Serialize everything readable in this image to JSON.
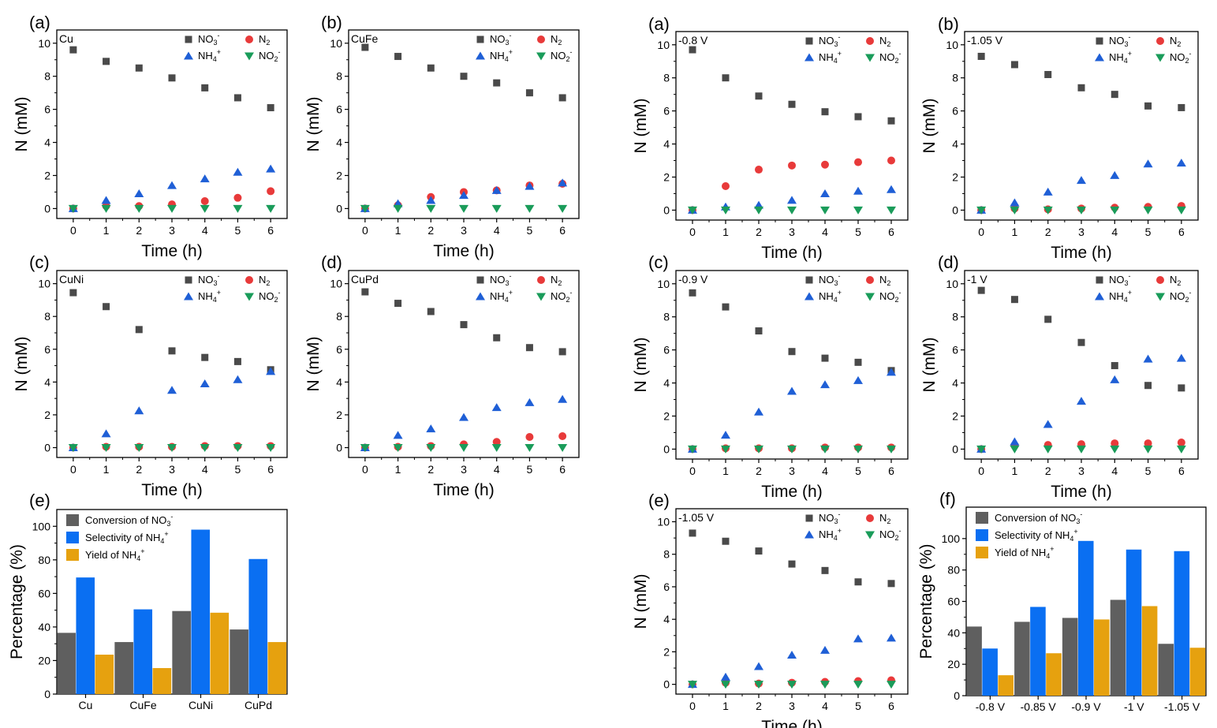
{
  "figure": {
    "series_names": [
      "NO3-",
      "N2",
      "NH4+",
      "NO2-"
    ],
    "colors": {
      "no3": "#4a4a4a",
      "n2": "#e83a3a",
      "nh4": "#1f5fd6",
      "no2": "#1a9c5a",
      "conv": "#5f5f5f",
      "sel": "#0a6ff2",
      "yield": "#e6a10f"
    },
    "time_xlabel": "Time (h)",
    "n_ylabel": "N (mM)",
    "pct_ylabel": "Percentage (%)"
  },
  "chart_data": [
    {
      "type": "scatter",
      "label": "(a)",
      "title": "Cu",
      "xlabel": "Time (h)",
      "ylabel": "N (mM)",
      "xlim": [
        -0.5,
        6.5
      ],
      "ylim": [
        -0.6,
        10.8
      ],
      "xticks": [
        0,
        1,
        2,
        3,
        4,
        5,
        6
      ],
      "yticks": [
        0,
        2,
        4,
        6,
        8,
        10
      ],
      "x": [
        0,
        1,
        2,
        3,
        4,
        5,
        6
      ],
      "series": [
        {
          "name": "NO3-",
          "values": [
            9.6,
            8.9,
            8.5,
            7.9,
            7.3,
            6.7,
            6.1
          ]
        },
        {
          "name": "N2",
          "values": [
            0,
            0.15,
            0.15,
            0.25,
            0.45,
            0.65,
            1.05
          ]
        },
        {
          "name": "NH4+",
          "values": [
            0,
            0.5,
            0.9,
            1.4,
            1.8,
            2.2,
            2.4
          ]
        },
        {
          "name": "NO2-",
          "values": [
            0,
            0,
            0,
            0,
            0,
            0,
            0
          ]
        }
      ]
    },
    {
      "type": "scatter",
      "label": "(b)",
      "title": "CuFe",
      "xlabel": "Time (h)",
      "ylabel": "N (mM)",
      "xlim": [
        -0.5,
        6.5
      ],
      "ylim": [
        -0.6,
        10.8
      ],
      "xticks": [
        0,
        1,
        2,
        3,
        4,
        5,
        6
      ],
      "yticks": [
        0,
        2,
        4,
        6,
        8,
        10
      ],
      "x": [
        0,
        1,
        2,
        3,
        4,
        5,
        6
      ],
      "series": [
        {
          "name": "NO3-",
          "values": [
            9.75,
            9.2,
            8.5,
            8.0,
            7.6,
            7.0,
            6.7
          ]
        },
        {
          "name": "N2",
          "values": [
            0,
            0.2,
            0.7,
            1.0,
            1.1,
            1.4,
            1.5
          ]
        },
        {
          "name": "NH4+",
          "values": [
            0,
            0.3,
            0.5,
            0.8,
            1.1,
            1.35,
            1.55
          ]
        },
        {
          "name": "NO2-",
          "values": [
            0,
            0,
            0,
            0,
            0,
            0,
            0
          ]
        }
      ]
    },
    {
      "type": "scatter",
      "label": "(c)",
      "title": "CuNi",
      "xlabel": "Time (h)",
      "ylabel": "N (mM)",
      "xlim": [
        -0.5,
        6.5
      ],
      "ylim": [
        -0.6,
        10.8
      ],
      "xticks": [
        0,
        1,
        2,
        3,
        4,
        5,
        6
      ],
      "yticks": [
        0,
        2,
        4,
        6,
        8,
        10
      ],
      "x": [
        0,
        1,
        2,
        3,
        4,
        5,
        6
      ],
      "series": [
        {
          "name": "NO3-",
          "values": [
            9.45,
            8.6,
            7.2,
            5.9,
            5.5,
            5.25,
            4.75
          ]
        },
        {
          "name": "N2",
          "values": [
            0,
            0.05,
            0.05,
            0.05,
            0.1,
            0.1,
            0.1
          ]
        },
        {
          "name": "NH4+",
          "values": [
            0,
            0.85,
            2.25,
            3.5,
            3.9,
            4.15,
            4.65
          ]
        },
        {
          "name": "NO2-",
          "values": [
            0,
            0,
            0,
            0,
            0,
            0,
            0
          ]
        }
      ]
    },
    {
      "type": "scatter",
      "label": "(d)",
      "title": "CuPd",
      "xlabel": "Time (h)",
      "ylabel": "N (mM)",
      "xlim": [
        -0.5,
        6.5
      ],
      "ylim": [
        -0.6,
        10.8
      ],
      "xticks": [
        0,
        1,
        2,
        3,
        4,
        5,
        6
      ],
      "yticks": [
        0,
        2,
        4,
        6,
        8,
        10
      ],
      "x": [
        0,
        1,
        2,
        3,
        4,
        5,
        6
      ],
      "series": [
        {
          "name": "NO3-",
          "values": [
            9.5,
            8.8,
            8.3,
            7.5,
            6.7,
            6.1,
            5.85
          ]
        },
        {
          "name": "N2",
          "values": [
            0,
            0.05,
            0.1,
            0.2,
            0.35,
            0.65,
            0.7
          ]
        },
        {
          "name": "NH4+",
          "values": [
            0,
            0.75,
            1.15,
            1.85,
            2.45,
            2.75,
            2.95
          ]
        },
        {
          "name": "NO2-",
          "values": [
            0,
            0,
            0,
            0,
            0,
            0,
            0
          ]
        }
      ]
    },
    {
      "type": "scatter",
      "label": "(a)",
      "title": "-0.8 V",
      "xlabel": "Time (h)",
      "ylabel": "N (mM)",
      "xlim": [
        -0.5,
        6.5
      ],
      "ylim": [
        -0.6,
        10.8
      ],
      "xticks": [
        0,
        1,
        2,
        3,
        4,
        5,
        6
      ],
      "yticks": [
        0,
        2,
        4,
        6,
        8,
        10
      ],
      "x": [
        0,
        1,
        2,
        3,
        4,
        5,
        6
      ],
      "series": [
        {
          "name": "NO3-",
          "values": [
            9.7,
            8.0,
            6.9,
            6.4,
            5.95,
            5.65,
            5.4
          ]
        },
        {
          "name": "N2",
          "values": [
            0,
            1.45,
            2.45,
            2.7,
            2.75,
            2.9,
            3.0
          ]
        },
        {
          "name": "NH4+",
          "values": [
            0,
            0.2,
            0.3,
            0.6,
            1.0,
            1.15,
            1.25
          ]
        },
        {
          "name": "NO2-",
          "values": [
            0,
            0,
            0,
            0,
            0,
            0,
            0
          ]
        }
      ]
    },
    {
      "type": "scatter",
      "label": "(b)",
      "title": "-1.05 V",
      "xlabel": "Time (h)",
      "ylabel": "N (mM)",
      "xlim": [
        -0.5,
        6.5
      ],
      "ylim": [
        -0.6,
        10.8
      ],
      "xticks": [
        0,
        1,
        2,
        3,
        4,
        5,
        6
      ],
      "yticks": [
        0,
        2,
        4,
        6,
        8,
        10
      ],
      "x": [
        0,
        1,
        2,
        3,
        4,
        5,
        6
      ],
      "series": [
        {
          "name": "NO3-",
          "values": [
            9.3,
            8.8,
            8.2,
            7.4,
            7.0,
            6.3,
            6.2
          ]
        },
        {
          "name": "N2",
          "values": [
            0,
            0.1,
            0.05,
            0.1,
            0.15,
            0.2,
            0.25
          ]
        },
        {
          "name": "NH4+",
          "values": [
            0,
            0.45,
            1.1,
            1.8,
            2.1,
            2.8,
            2.85
          ]
        },
        {
          "name": "NO2-",
          "values": [
            0,
            0,
            0,
            0,
            0,
            0,
            0
          ]
        }
      ]
    },
    {
      "type": "scatter",
      "label": "(c)",
      "title": "-0.9 V",
      "xlabel": "Time (h)",
      "ylabel": "N (mM)",
      "xlim": [
        -0.5,
        6.5
      ],
      "ylim": [
        -0.6,
        10.8
      ],
      "xticks": [
        0,
        1,
        2,
        3,
        4,
        5,
        6
      ],
      "yticks": [
        0,
        2,
        4,
        6,
        8,
        10
      ],
      "x": [
        0,
        1,
        2,
        3,
        4,
        5,
        6
      ],
      "series": [
        {
          "name": "NO3-",
          "values": [
            9.45,
            8.6,
            7.15,
            5.9,
            5.5,
            5.25,
            4.75
          ]
        },
        {
          "name": "N2",
          "values": [
            0,
            0.05,
            0.05,
            0.05,
            0.1,
            0.1,
            0.1
          ]
        },
        {
          "name": "NH4+",
          "values": [
            0,
            0.85,
            2.25,
            3.5,
            3.9,
            4.15,
            4.65
          ]
        },
        {
          "name": "NO2-",
          "values": [
            0,
            0,
            0,
            0,
            0,
            0,
            0
          ]
        }
      ]
    },
    {
      "type": "scatter",
      "label": "(d)",
      "title": "-1 V",
      "xlabel": "Time (h)",
      "ylabel": "N (mM)",
      "xlim": [
        -0.5,
        6.5
      ],
      "ylim": [
        -0.6,
        10.8
      ],
      "xticks": [
        0,
        1,
        2,
        3,
        4,
        5,
        6
      ],
      "yticks": [
        0,
        2,
        4,
        6,
        8,
        10
      ],
      "x": [
        0,
        1,
        2,
        3,
        4,
        5,
        6
      ],
      "series": [
        {
          "name": "NO3-",
          "values": [
            9.6,
            9.05,
            7.85,
            6.45,
            5.05,
            3.85,
            3.7
          ]
        },
        {
          "name": "N2",
          "values": [
            0,
            0.2,
            0.25,
            0.3,
            0.35,
            0.35,
            0.4
          ]
        },
        {
          "name": "NH4+",
          "values": [
            0,
            0.45,
            1.5,
            2.9,
            4.2,
            5.45,
            5.5
          ]
        },
        {
          "name": "NO2-",
          "values": [
            0,
            0,
            0,
            0,
            0,
            0,
            0
          ]
        }
      ]
    },
    {
      "type": "scatter",
      "label": "(e)",
      "title": "-1.05 V",
      "xlabel": "Time (h)",
      "ylabel": "N (mM)",
      "xlim": [
        -0.5,
        6.5
      ],
      "ylim": [
        -0.6,
        10.8
      ],
      "xticks": [
        0,
        1,
        2,
        3,
        4,
        5,
        6
      ],
      "yticks": [
        0,
        2,
        4,
        6,
        8,
        10
      ],
      "x": [
        0,
        1,
        2,
        3,
        4,
        5,
        6
      ],
      "series": [
        {
          "name": "NO3-",
          "values": [
            9.3,
            8.8,
            8.2,
            7.4,
            7.0,
            6.3,
            6.2
          ]
        },
        {
          "name": "N2",
          "values": [
            0,
            0.1,
            0.05,
            0.1,
            0.15,
            0.2,
            0.25
          ]
        },
        {
          "name": "NH4+",
          "values": [
            0,
            0.45,
            1.1,
            1.8,
            2.1,
            2.8,
            2.85
          ]
        },
        {
          "name": "NO2-",
          "values": [
            0,
            0,
            0,
            0,
            0,
            0,
            0
          ]
        }
      ]
    },
    {
      "type": "bar",
      "label": "(e)",
      "title": "",
      "xlabel": "",
      "ylabel": "Percentage (%)",
      "ylim": [
        0,
        110
      ],
      "yticks": [
        0,
        20,
        40,
        60,
        80,
        100
      ],
      "categories": [
        "Cu",
        "CuFe",
        "CuNi",
        "CuPd"
      ],
      "series": [
        {
          "name": "Conversion of NO3-",
          "values": [
            36.5,
            31,
            49.5,
            38.5
          ]
        },
        {
          "name": "Selectivity of NH4+",
          "values": [
            69.5,
            50.5,
            98,
            80.5
          ]
        },
        {
          "name": "Yield of NH4+",
          "values": [
            23.5,
            15.5,
            48.5,
            31
          ]
        }
      ]
    },
    {
      "type": "bar",
      "label": "(f)",
      "title": "",
      "xlabel": "",
      "ylabel": "Percentage (%)",
      "ylim": [
        0,
        120
      ],
      "yticks": [
        0,
        20,
        40,
        60,
        80,
        100
      ],
      "categories": [
        "-0.8 V",
        "-0.85 V",
        "-0.9 V",
        "-1 V",
        "-1.05 V"
      ],
      "series": [
        {
          "name": "Conversion of NO3-",
          "values": [
            44,
            47,
            49.5,
            61,
            33
          ]
        },
        {
          "name": "Selectivity of NH4+",
          "values": [
            30,
            56.5,
            98.5,
            93,
            92
          ]
        },
        {
          "name": "Yield of NH4+",
          "values": [
            13,
            27,
            48.5,
            57,
            30.5
          ]
        }
      ]
    }
  ]
}
